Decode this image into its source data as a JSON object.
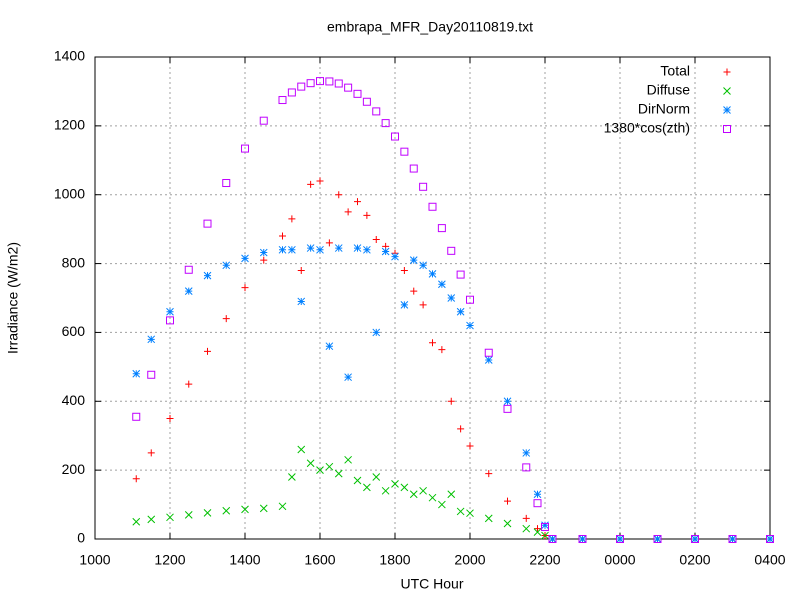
{
  "chart_data": {
    "type": "scatter",
    "title": "embrapa_MFR_Day20110819.txt",
    "xlabel": "UTC Hour",
    "ylabel": "Irradiance (W/m2)",
    "x": [
      11.1,
      11.5,
      12,
      12.5,
      13,
      13.5,
      14,
      14.5,
      15,
      15.25,
      15.5,
      15.75,
      16,
      16.25,
      16.5,
      16.75,
      17,
      17.25,
      17.5,
      17.75,
      18,
      18.25,
      18.5,
      18.75,
      19,
      19.25,
      19.5,
      19.75,
      20,
      20.5,
      21,
      21.5,
      21.8,
      22,
      22.2,
      23,
      24,
      25,
      26,
      27,
      28
    ],
    "series": [
      {
        "name": "Total",
        "color": "#ff0000",
        "marker": "plus",
        "values": [
          175,
          250,
          350,
          450,
          545,
          640,
          730,
          810,
          880,
          930,
          780,
          1030,
          1040,
          860,
          1000,
          950,
          980,
          940,
          870,
          850,
          830,
          780,
          720,
          680,
          570,
          550,
          400,
          320,
          270,
          190,
          110,
          60,
          30,
          10,
          0,
          0,
          0,
          0,
          0,
          0,
          0
        ]
      },
      {
        "name": "Diffuse",
        "color": "#00c000",
        "marker": "cross",
        "values": [
          50,
          57,
          63,
          70,
          76,
          82,
          86,
          89,
          95,
          180,
          260,
          220,
          200,
          210,
          190,
          230,
          170,
          150,
          180,
          140,
          160,
          150,
          130,
          140,
          120,
          100,
          130,
          80,
          75,
          60,
          45,
          30,
          20,
          10,
          0,
          0,
          0,
          0,
          0,
          0,
          0
        ]
      },
      {
        "name": "DirNorm",
        "color": "#0080ff",
        "marker": "star",
        "values": [
          480,
          580,
          660,
          720,
          765,
          795,
          815,
          832,
          840,
          840,
          690,
          845,
          840,
          560,
          845,
          470,
          845,
          840,
          600,
          835,
          820,
          680,
          810,
          795,
          770,
          740,
          700,
          660,
          620,
          520,
          400,
          250,
          130,
          40,
          0,
          0,
          0,
          0,
          0,
          0,
          0
        ]
      },
      {
        "name": "1380*cos(zth)",
        "color": "#c000ff",
        "marker": "square",
        "values": [
          355,
          477,
          635,
          782,
          916,
          1034,
          1134,
          1215,
          1275,
          1297,
          1314,
          1324,
          1330,
          1329,
          1323,
          1311,
          1293,
          1270,
          1242,
          1208,
          1169,
          1125,
          1076,
          1023,
          965,
          903,
          837,
          768,
          695,
          541,
          378,
          208,
          104,
          35,
          0,
          0,
          0,
          0,
          0,
          0,
          0
        ]
      }
    ],
    "xlim": [
      10,
      28
    ],
    "xticks": [
      {
        "value": 10,
        "label": "1000"
      },
      {
        "value": 12,
        "label": "1200"
      },
      {
        "value": 14,
        "label": "1400"
      },
      {
        "value": 16,
        "label": "1600"
      },
      {
        "value": 18,
        "label": "1800"
      },
      {
        "value": 20,
        "label": "2000"
      },
      {
        "value": 22,
        "label": "2200"
      },
      {
        "value": 24,
        "label": "0000"
      },
      {
        "value": 26,
        "label": "0200"
      },
      {
        "value": 28,
        "label": "0400"
      }
    ],
    "ylim": [
      0,
      1400
    ],
    "yticks": [
      0,
      200,
      400,
      600,
      800,
      1000,
      1200,
      1400
    ],
    "grid": true,
    "legend": "top-right"
  }
}
